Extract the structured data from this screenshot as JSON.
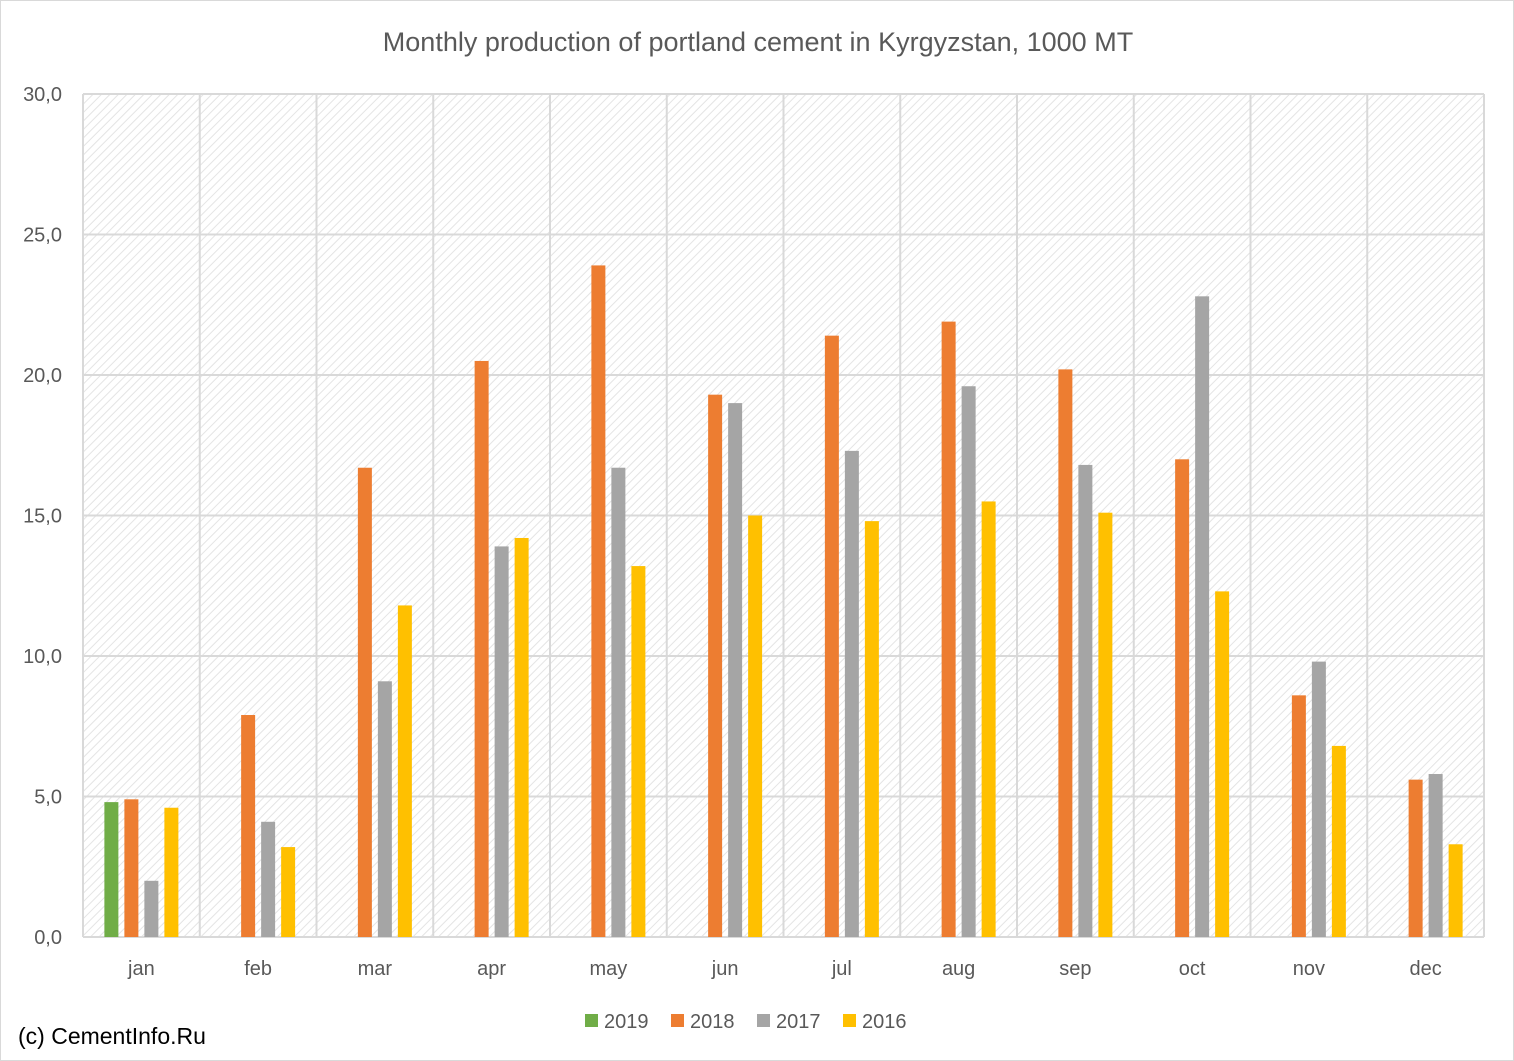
{
  "chart_data": {
    "type": "bar",
    "title": "Monthly production of portland cement in Kyrgyzstan, 1000 MT",
    "xlabel": "",
    "ylabel": "",
    "ylim": [
      0,
      30
    ],
    "yticks": [
      "0,0",
      "5,0",
      "10,0",
      "15,0",
      "20,0",
      "25,0",
      "30,0"
    ],
    "categories": [
      "jan",
      "feb",
      "mar",
      "apr",
      "may",
      "jun",
      "jul",
      "aug",
      "sep",
      "oct",
      "nov",
      "dec"
    ],
    "grid": true,
    "legend_position": "bottom",
    "series": [
      {
        "name": "2019",
        "color": "#70ad47",
        "values": [
          4.8,
          null,
          null,
          null,
          null,
          null,
          null,
          null,
          null,
          null,
          null,
          null
        ]
      },
      {
        "name": "2018",
        "color": "#ed7d31",
        "values": [
          4.9,
          7.9,
          16.7,
          20.5,
          23.9,
          19.3,
          21.4,
          21.9,
          20.2,
          17.0,
          8.6,
          5.6
        ]
      },
      {
        "name": "2017",
        "color": "#a5a5a5",
        "values": [
          2.0,
          4.1,
          9.1,
          13.9,
          16.7,
          19.0,
          17.3,
          19.6,
          16.8,
          22.8,
          9.8,
          5.8
        ]
      },
      {
        "name": "2016",
        "color": "#ffc000",
        "values": [
          4.6,
          3.2,
          11.8,
          14.2,
          13.2,
          15.0,
          14.8,
          15.5,
          15.1,
          12.3,
          6.8,
          3.3
        ]
      }
    ],
    "credit": "(c) CementInfo.Ru"
  }
}
